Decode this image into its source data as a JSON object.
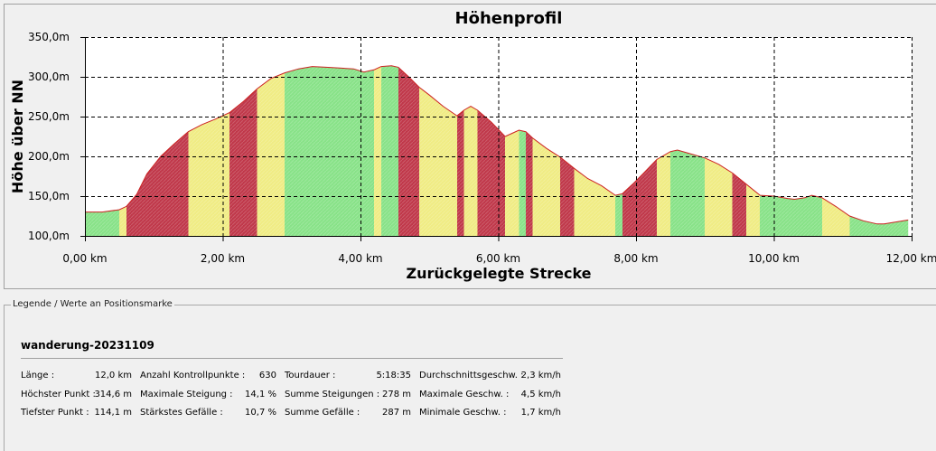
{
  "chart_data": {
    "type": "area",
    "title": "Höhenprofil",
    "xlabel": "Zurückgelegte Strecke",
    "ylabel": "Höhe über NN",
    "xlim": [
      0,
      12
    ],
    "ylim": [
      100,
      350
    ],
    "x_ticks": [
      0,
      2,
      4,
      6,
      8,
      10,
      12
    ],
    "x_tick_labels": [
      "0,00 km",
      "2,00 km",
      "4,00 km",
      "6,00 km",
      "8,00 km",
      "10,00 km",
      "12,00 km"
    ],
    "y_ticks": [
      100,
      150,
      200,
      250,
      300,
      350
    ],
    "y_tick_labels": [
      "100,0m",
      "150,0m",
      "200,0m",
      "250,0m",
      "300,0m",
      "350,0m"
    ],
    "grid": true,
    "x": [
      0,
      0.25,
      0.5,
      0.6,
      0.75,
      0.9,
      1.1,
      1.3,
      1.5,
      1.7,
      1.9,
      2.1,
      2.3,
      2.5,
      2.7,
      2.9,
      3.1,
      3.3,
      3.5,
      3.7,
      3.9,
      4.05,
      4.2,
      4.3,
      4.45,
      4.55,
      4.7,
      4.85,
      5.0,
      5.2,
      5.4,
      5.5,
      5.6,
      5.7,
      5.9,
      6.1,
      6.2,
      6.3,
      6.4,
      6.5,
      6.7,
      6.9,
      7.1,
      7.3,
      7.5,
      7.7,
      7.8,
      7.95,
      8.1,
      8.3,
      8.5,
      8.6,
      8.8,
      9.0,
      9.2,
      9.4,
      9.6,
      9.8,
      10.0,
      10.2,
      10.3,
      10.45,
      10.55,
      10.7,
      10.9,
      11.1,
      11.3,
      11.5,
      11.6,
      11.8,
      11.95
    ],
    "y": [
      130,
      130,
      133,
      137,
      152,
      178,
      200,
      216,
      231,
      240,
      247,
      255,
      269,
      285,
      298,
      305,
      310,
      313,
      312,
      311,
      310,
      306,
      309,
      313,
      314,
      312,
      300,
      287,
      277,
      263,
      251,
      258,
      263,
      258,
      243,
      225,
      229,
      233,
      231,
      223,
      210,
      199,
      185,
      172,
      163,
      151,
      153,
      165,
      178,
      196,
      206,
      208,
      203,
      198,
      190,
      179,
      165,
      151,
      150,
      147,
      146,
      148,
      151,
      148,
      137,
      125,
      119,
      115,
      115,
      118,
      120
    ],
    "colors": {
      "flat": "#88e288",
      "moderate": "#f0ec84",
      "steep": "#c0384a",
      "outline": "#cc2222",
      "grid": "#000000"
    }
  },
  "legend": {
    "caption": "Legende / Werte an Positionsmarke",
    "track_name": "wanderung-20231109",
    "columns": [
      {
        "rows": [
          {
            "label": "Länge :",
            "value": "12,0 km"
          },
          {
            "label": "Höchster Punkt :",
            "value": "314,6 m"
          },
          {
            "label": "Tiefster Punkt :",
            "value": "114,1 m"
          }
        ]
      },
      {
        "rows": [
          {
            "label": "Anzahl Kontrollpunkte :",
            "value": "630"
          },
          {
            "label": "Maximale Steigung :",
            "value": "14,1 %"
          },
          {
            "label": "Stärkstes Gefälle :",
            "value": "10,7 %"
          }
        ]
      },
      {
        "rows": [
          {
            "label": "Tourdauer :",
            "value": "5:18:35"
          },
          {
            "label": "Summe Steigungen :",
            "value": "278 m"
          },
          {
            "label": "Summe Gefälle :",
            "value": "287 m"
          }
        ]
      },
      {
        "rows": [
          {
            "label": "Durchschnittsgeschw. :",
            "value": "2,3 km/h"
          },
          {
            "label": "Maximale Geschw. :",
            "value": "4,5 km/h"
          },
          {
            "label": "Minimale Geschw. :",
            "value": "1,7 km/h"
          }
        ]
      }
    ]
  }
}
